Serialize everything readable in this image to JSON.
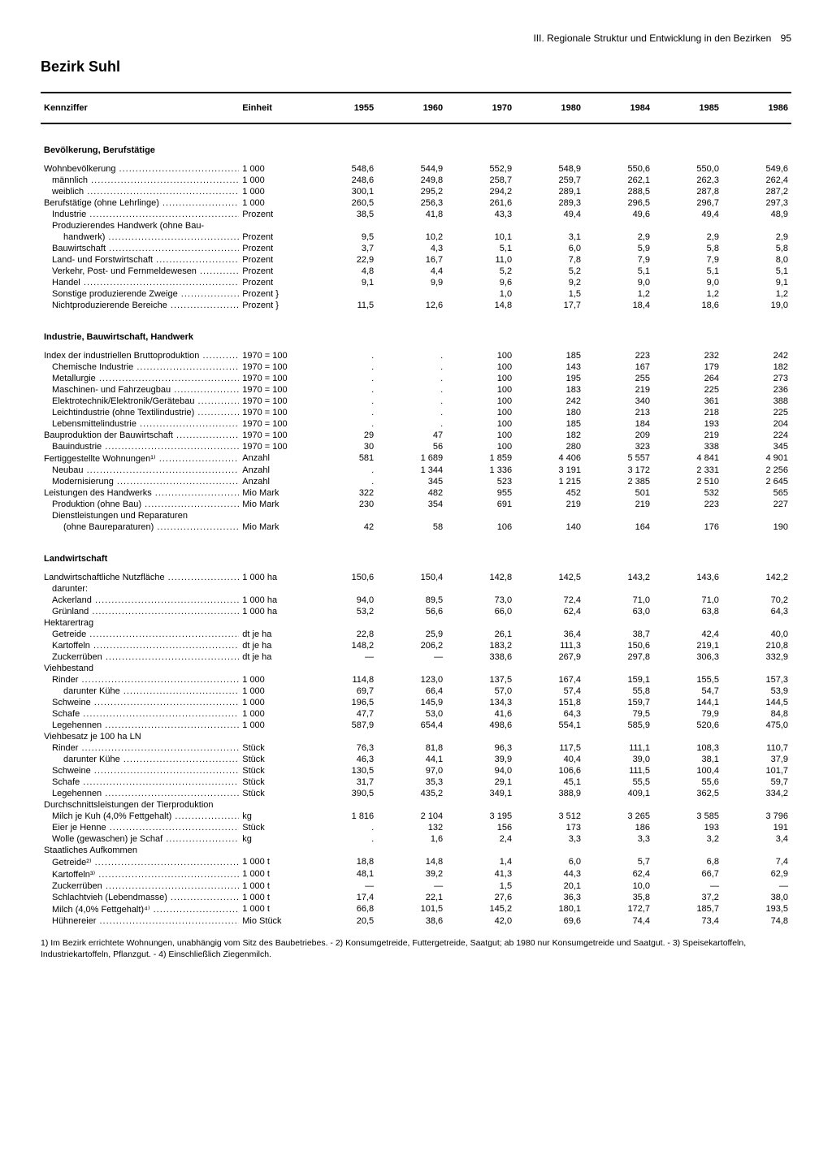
{
  "header": {
    "section": "III. Regionale Struktur und Entwicklung in den Bezirken",
    "page": "95"
  },
  "title": "Bezirk Suhl",
  "columns": {
    "label": "Kennziffer",
    "unit": "Einheit",
    "years": [
      "1955",
      "1960",
      "1970",
      "1980",
      "1984",
      "1985",
      "1986"
    ]
  },
  "sections": [
    {
      "title": "Bevölkerung, Berufstätige",
      "rows": [
        {
          "l": "Wohnbevölkerung",
          "u": "1 000",
          "v": [
            "548,6",
            "544,9",
            "552,9",
            "548,9",
            "550,6",
            "550,0",
            "549,6"
          ]
        },
        {
          "l": "männlich",
          "i": 1,
          "u": "1 000",
          "v": [
            "248,6",
            "249,8",
            "258,7",
            "259,7",
            "262,1",
            "262,3",
            "262,4"
          ]
        },
        {
          "l": "weiblich",
          "i": 1,
          "u": "1 000",
          "v": [
            "300,1",
            "295,2",
            "294,2",
            "289,1",
            "288,5",
            "287,8",
            "287,2"
          ]
        },
        {
          "l": "Berufstätige (ohne Lehrlinge)",
          "u": "1 000",
          "v": [
            "260,5",
            "256,3",
            "261,6",
            "289,3",
            "296,5",
            "296,7",
            "297,3"
          ]
        },
        {
          "l": "Industrie",
          "i": 1,
          "u": "Prozent",
          "v": [
            "38,5",
            "41,8",
            "43,3",
            "49,4",
            "49,6",
            "49,4",
            "48,9"
          ]
        },
        {
          "l": "Produzierendes Handwerk (ohne Bau-",
          "i": 1,
          "u": "",
          "v": [
            "",
            "",
            "",
            "",
            "",
            "",
            ""
          ],
          "nodots": true
        },
        {
          "l": "handwerk)",
          "i": 2,
          "u": "Prozent",
          "v": [
            "9,5",
            "10,2",
            "10,1",
            "3,1",
            "2,9",
            "2,9",
            "2,9"
          ]
        },
        {
          "l": "Bauwirtschaft",
          "i": 1,
          "u": "Prozent",
          "v": [
            "3,7",
            "4,3",
            "5,1",
            "6,0",
            "5,9",
            "5,8",
            "5,8"
          ]
        },
        {
          "l": "Land- und Forstwirtschaft",
          "i": 1,
          "u": "Prozent",
          "v": [
            "22,9",
            "16,7",
            "11,0",
            "7,8",
            "7,9",
            "7,9",
            "8,0"
          ]
        },
        {
          "l": "Verkehr, Post- und Fernmeldewesen",
          "i": 1,
          "u": "Prozent",
          "v": [
            "4,8",
            "4,4",
            "5,2",
            "5,2",
            "5,1",
            "5,1",
            "5,1"
          ]
        },
        {
          "l": "Handel",
          "i": 1,
          "u": "Prozent",
          "v": [
            "9,1",
            "9,9",
            "9,6",
            "9,2",
            "9,0",
            "9,0",
            "9,1"
          ]
        },
        {
          "l": "Sonstige produzierende Zweige",
          "i": 1,
          "u": "Prozent  }",
          "v": [
            "",
            "",
            "1,0",
            "1,5",
            "1,2",
            "1,2",
            "1,2"
          ]
        },
        {
          "l": "Nichtproduzierende Bereiche",
          "i": 1,
          "u": "Prozent  }",
          "v": [
            "11,5",
            "12,6",
            "14,8",
            "17,7",
            "18,4",
            "18,6",
            "19,0"
          ]
        }
      ]
    },
    {
      "title": "Industrie, Bauwirtschaft, Handwerk",
      "rows": [
        {
          "l": "Index der industriellen Bruttoproduktion",
          "u": "1970 = 100",
          "v": [
            ".",
            ".",
            "100",
            "185",
            "223",
            "232",
            "242"
          ]
        },
        {
          "l": "Chemische Industrie",
          "i": 1,
          "u": "1970 = 100",
          "v": [
            ".",
            ".",
            "100",
            "143",
            "167",
            "179",
            "182"
          ]
        },
        {
          "l": "Metallurgie",
          "i": 1,
          "u": "1970 = 100",
          "v": [
            ".",
            ".",
            "100",
            "195",
            "255",
            "264",
            "273"
          ]
        },
        {
          "l": "Maschinen- und Fahrzeugbau",
          "i": 1,
          "u": "1970 = 100",
          "v": [
            ".",
            ".",
            "100",
            "183",
            "219",
            "225",
            "236"
          ]
        },
        {
          "l": "Elektrotechnik/Elektronik/Gerätebau",
          "i": 1,
          "u": "1970 = 100",
          "v": [
            ".",
            ".",
            "100",
            "242",
            "340",
            "361",
            "388"
          ]
        },
        {
          "l": "Leichtindustrie (ohne Textilindustrie)",
          "i": 1,
          "u": "1970 = 100",
          "v": [
            ".",
            ".",
            "100",
            "180",
            "213",
            "218",
            "225"
          ]
        },
        {
          "l": "Lebensmittelindustrie",
          "i": 1,
          "u": "1970 = 100",
          "v": [
            ".",
            ".",
            "100",
            "185",
            "184",
            "193",
            "204"
          ]
        },
        {
          "l": "Bauproduktion der Bauwirtschaft",
          "u": "1970 = 100",
          "v": [
            "29",
            "47",
            "100",
            "182",
            "209",
            "219",
            "224"
          ]
        },
        {
          "l": "Bauindustrie",
          "i": 1,
          "u": "1970 = 100",
          "v": [
            "30",
            "56",
            "100",
            "280",
            "323",
            "338",
            "345"
          ]
        },
        {
          "l": "Fertiggestellte Wohnungen¹⁾",
          "u": "Anzahl",
          "v": [
            "581",
            "1 689",
            "1 859",
            "4 406",
            "5 557",
            "4 841",
            "4 901"
          ]
        },
        {
          "l": "Neubau",
          "i": 1,
          "u": "Anzahl",
          "v": [
            ".",
            "1 344",
            "1 336",
            "3 191",
            "3 172",
            "2 331",
            "2 256"
          ]
        },
        {
          "l": "Modernisierung",
          "i": 1,
          "u": "Anzahl",
          "v": [
            ".",
            "345",
            "523",
            "1 215",
            "2 385",
            "2 510",
            "2 645"
          ]
        },
        {
          "l": "Leistungen des Handwerks",
          "u": "Mio Mark",
          "v": [
            "322",
            "482",
            "955",
            "452",
            "501",
            "532",
            "565"
          ]
        },
        {
          "l": "Produktion (ohne Bau)",
          "i": 1,
          "u": "Mio Mark",
          "v": [
            "230",
            "354",
            "691",
            "219",
            "219",
            "223",
            "227"
          ]
        },
        {
          "l": "Dienstleistungen und Reparaturen",
          "i": 1,
          "u": "",
          "v": [
            "",
            "",
            "",
            "",
            "",
            "",
            ""
          ],
          "nodots": true
        },
        {
          "l": "(ohne Baureparaturen)",
          "i": 2,
          "u": "Mio Mark",
          "v": [
            "42",
            "58",
            "106",
            "140",
            "164",
            "176",
            "190"
          ]
        }
      ]
    },
    {
      "title": "Landwirtschaft",
      "rows": [
        {
          "l": "Landwirtschaftliche Nutzfläche",
          "u": "1 000 ha",
          "v": [
            "150,6",
            "150,4",
            "142,8",
            "142,5",
            "143,2",
            "143,6",
            "142,2"
          ]
        },
        {
          "l": "darunter:",
          "i": 1,
          "u": "",
          "v": [
            "",
            "",
            "",
            "",
            "",
            "",
            ""
          ],
          "nodots": true
        },
        {
          "l": "Ackerland",
          "i": 1,
          "u": "1 000 ha",
          "v": [
            "94,0",
            "89,5",
            "73,0",
            "72,4",
            "71,0",
            "71,0",
            "70,2"
          ]
        },
        {
          "l": "Grünland",
          "i": 1,
          "u": "1 000 ha",
          "v": [
            "53,2",
            "56,6",
            "66,0",
            "62,4",
            "63,0",
            "63,8",
            "64,3"
          ]
        },
        {
          "l": "Hektarertrag",
          "u": "",
          "v": [
            "",
            "",
            "",
            "",
            "",
            "",
            ""
          ],
          "nodots": true
        },
        {
          "l": "Getreide",
          "i": 1,
          "u": "dt je ha",
          "v": [
            "22,8",
            "25,9",
            "26,1",
            "36,4",
            "38,7",
            "42,4",
            "40,0"
          ]
        },
        {
          "l": "Kartoffeln",
          "i": 1,
          "u": "dt je ha",
          "v": [
            "148,2",
            "206,2",
            "183,2",
            "111,3",
            "150,6",
            "219,1",
            "210,8"
          ]
        },
        {
          "l": "Zuckerrüben",
          "i": 1,
          "u": "dt je ha",
          "v": [
            "—",
            "—",
            "338,6",
            "267,9",
            "297,8",
            "306,3",
            "332,9"
          ]
        },
        {
          "l": "Viehbestand",
          "u": "",
          "v": [
            "",
            "",
            "",
            "",
            "",
            "",
            ""
          ],
          "nodots": true
        },
        {
          "l": "Rinder",
          "i": 1,
          "u": "1 000",
          "v": [
            "114,8",
            "123,0",
            "137,5",
            "167,4",
            "159,1",
            "155,5",
            "157,3"
          ]
        },
        {
          "l": "darunter Kühe",
          "i": 2,
          "u": "1 000",
          "v": [
            "69,7",
            "66,4",
            "57,0",
            "57,4",
            "55,8",
            "54,7",
            "53,9"
          ]
        },
        {
          "l": "Schweine",
          "i": 1,
          "u": "1 000",
          "v": [
            "196,5",
            "145,9",
            "134,3",
            "151,8",
            "159,7",
            "144,1",
            "144,5"
          ]
        },
        {
          "l": "Schafe",
          "i": 1,
          "u": "1 000",
          "v": [
            "47,7",
            "53,0",
            "41,6",
            "64,3",
            "79,5",
            "79,9",
            "84,8"
          ]
        },
        {
          "l": "Legehennen",
          "i": 1,
          "u": "1 000",
          "v": [
            "587,9",
            "654,4",
            "498,6",
            "554,1",
            "585,9",
            "520,6",
            "475,0"
          ]
        },
        {
          "l": "Viehbesatz je 100 ha LN",
          "u": "",
          "v": [
            "",
            "",
            "",
            "",
            "",
            "",
            ""
          ],
          "nodots": true
        },
        {
          "l": "Rinder",
          "i": 1,
          "u": "Stück",
          "v": [
            "76,3",
            "81,8",
            "96,3",
            "117,5",
            "111,1",
            "108,3",
            "110,7"
          ]
        },
        {
          "l": "darunter Kühe",
          "i": 2,
          "u": "Stück",
          "v": [
            "46,3",
            "44,1",
            "39,9",
            "40,4",
            "39,0",
            "38,1",
            "37,9"
          ]
        },
        {
          "l": "Schweine",
          "i": 1,
          "u": "Stück",
          "v": [
            "130,5",
            "97,0",
            "94,0",
            "106,6",
            "111,5",
            "100,4",
            "101,7"
          ]
        },
        {
          "l": "Schafe",
          "i": 1,
          "u": "Stück",
          "v": [
            "31,7",
            "35,3",
            "29,1",
            "45,1",
            "55,5",
            "55,6",
            "59,7"
          ]
        },
        {
          "l": "Legehennen",
          "i": 1,
          "u": "Stück",
          "v": [
            "390,5",
            "435,2",
            "349,1",
            "388,9",
            "409,1",
            "362,5",
            "334,2"
          ]
        },
        {
          "l": "Durchschnittsleistungen der Tierproduktion",
          "u": "",
          "v": [
            "",
            "",
            "",
            "",
            "",
            "",
            ""
          ],
          "nodots": true
        },
        {
          "l": "Milch je Kuh (4,0% Fettgehalt)",
          "i": 1,
          "u": "kg",
          "v": [
            "1 816",
            "2 104",
            "3 195",
            "3 512",
            "3 265",
            "3 585",
            "3 796"
          ]
        },
        {
          "l": "Eier je Henne",
          "i": 1,
          "u": "Stück",
          "v": [
            ".",
            "132",
            "156",
            "173",
            "186",
            "193",
            "191"
          ]
        },
        {
          "l": "Wolle (gewaschen) je Schaf",
          "i": 1,
          "u": "kg",
          "v": [
            ".",
            "1,6",
            "2,4",
            "3,3",
            "3,3",
            "3,2",
            "3,4"
          ]
        },
        {
          "l": "Staatliches Aufkommen",
          "u": "",
          "v": [
            "",
            "",
            "",
            "",
            "",
            "",
            ""
          ],
          "nodots": true
        },
        {
          "l": "Getreide²⁾",
          "i": 1,
          "u": "1 000 t",
          "v": [
            "18,8",
            "14,8",
            "1,4",
            "6,0",
            "5,7",
            "6,8",
            "7,4"
          ]
        },
        {
          "l": "Kartoffeln³⁾",
          "i": 1,
          "u": "1 000 t",
          "v": [
            "48,1",
            "39,2",
            "41,3",
            "44,3",
            "62,4",
            "66,7",
            "62,9"
          ]
        },
        {
          "l": "Zuckerrüben",
          "i": 1,
          "u": "1 000 t",
          "v": [
            "—",
            "—",
            "1,5",
            "20,1",
            "10,0",
            "—",
            "—"
          ]
        },
        {
          "l": "Schlachtvieh (Lebendmasse)",
          "i": 1,
          "u": "1 000 t",
          "v": [
            "17,4",
            "22,1",
            "27,6",
            "36,3",
            "35,8",
            "37,2",
            "38,0"
          ]
        },
        {
          "l": "Milch (4,0% Fettgehalt)⁴⁾",
          "i": 1,
          "u": "1 000 t",
          "v": [
            "66,8",
            "101,5",
            "145,2",
            "180,1",
            "172,7",
            "185,7",
            "193,5"
          ]
        },
        {
          "l": "Hühnereier",
          "i": 1,
          "u": "Mio Stück",
          "v": [
            "20,5",
            "38,6",
            "42,0",
            "69,6",
            "74,4",
            "73,4",
            "74,8"
          ]
        }
      ]
    }
  ],
  "footnotes": "1) Im Bezirk errichtete Wohnungen, unabhängig vom Sitz des Baubetriebes. - 2) Konsumgetreide, Futtergetreide, Saatgut; ab 1980 nur Konsumgetreide und Saatgut. - 3) Speisekartoffeln, Industriekartoffeln, Pflanzgut. - 4) Einschließlich Ziegenmilch."
}
